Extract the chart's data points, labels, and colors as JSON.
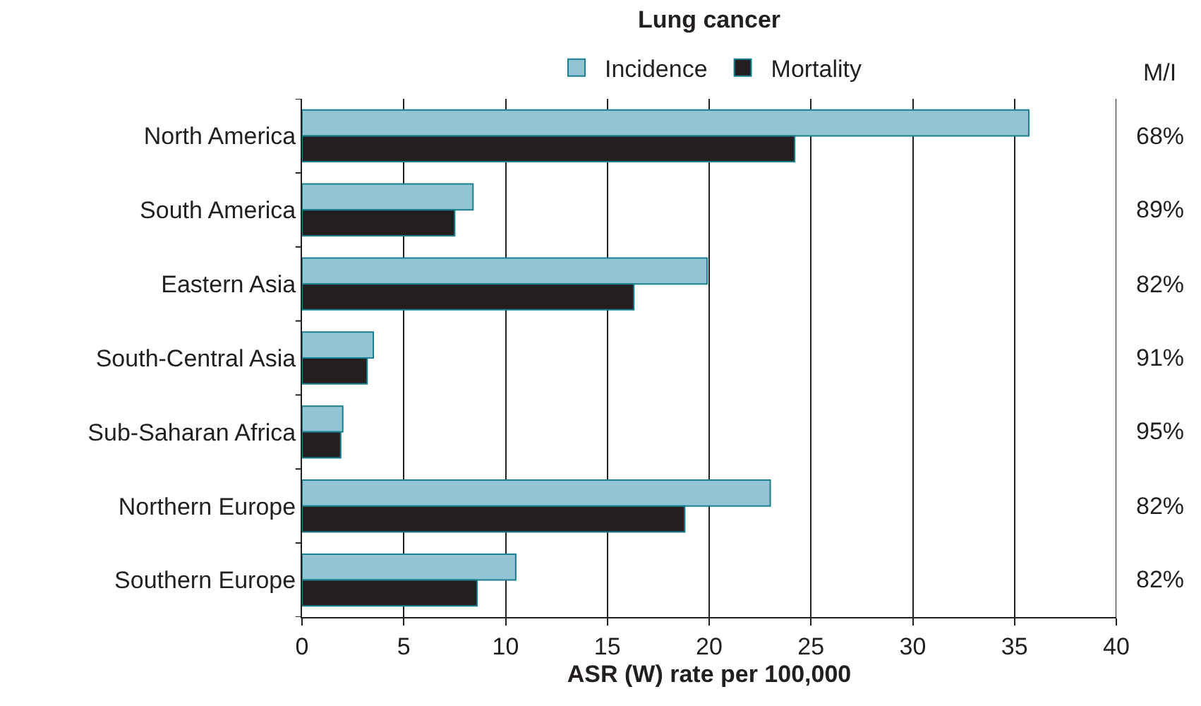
{
  "chart_data": {
    "type": "bar",
    "orientation": "horizontal",
    "title": "Lung cancer",
    "xlabel": "ASR (W) rate per 100,000",
    "categories": [
      "North America",
      "South America",
      "Eastern Asia",
      "South-Central Asia",
      "Sub-Saharan Africa",
      "Northern Europe",
      "Southern Europe"
    ],
    "series": [
      {
        "name": "Incidence",
        "color": "#93c4d4",
        "values": [
          35.7,
          8.4,
          19.9,
          3.5,
          2.0,
          23.0,
          10.5
        ]
      },
      {
        "name": "Mortality",
        "color": "#231f20",
        "values": [
          24.2,
          7.5,
          16.3,
          3.2,
          1.9,
          18.8,
          8.6
        ]
      }
    ],
    "xlim": [
      0,
      40
    ],
    "xticks": [
      0,
      5,
      10,
      15,
      20,
      25,
      30,
      35,
      40
    ],
    "grid": "x",
    "legend": "top",
    "annotations": [
      "M/I",
      "68%",
      "89%",
      "82%",
      "91%",
      "95%",
      "82%",
      "82%"
    ]
  }
}
